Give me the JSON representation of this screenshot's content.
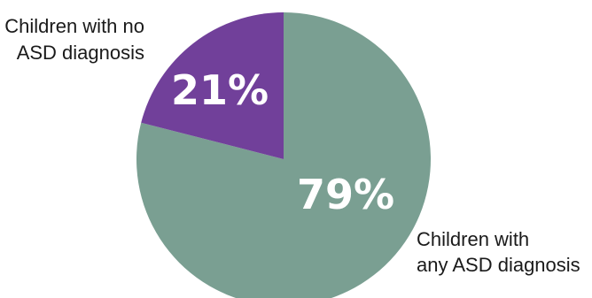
{
  "chart_data": {
    "type": "pie",
    "slices": [
      {
        "label_lines": [
          "Children with",
          "any ASD diagnosis"
        ],
        "value": 79,
        "value_label": "79%",
        "color": "#7a9f92"
      },
      {
        "label_lines": [
          "Children with no",
          "ASD diagnosis"
        ],
        "value": 21,
        "value_label": "21%",
        "color": "#71409a"
      }
    ],
    "start": "12 o'clock, clockwise",
    "legend": "none (direct labels)",
    "title": ""
  }
}
